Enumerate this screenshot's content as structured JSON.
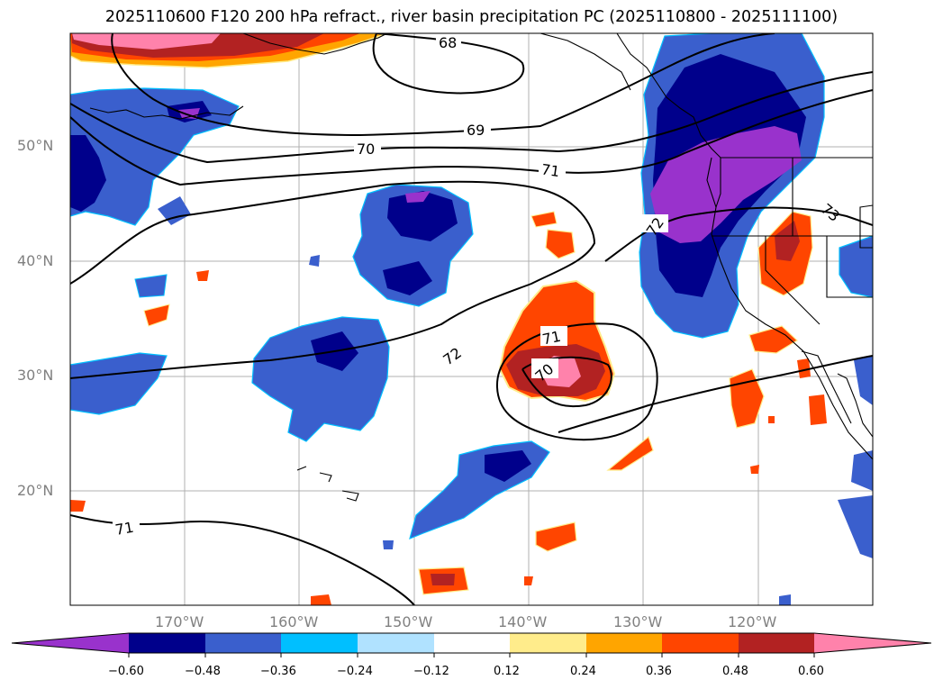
{
  "title": "2025110600 F120 200 hPa refract., river basin precipitation PC (2025110800 - 2025111100)",
  "map": {
    "lat_labels": [
      "50°N",
      "40°N",
      "30°N",
      "20°N"
    ],
    "lon_labels": [
      "170°W",
      "160°W",
      "150°W",
      "140°W",
      "130°W",
      "120°W"
    ],
    "contour_labels": [
      "68",
      "69",
      "70",
      "71",
      "72",
      "70",
      "71",
      "71",
      "73",
      "72"
    ],
    "contour_color": "#000000",
    "coastline_color": "#000000",
    "grid_color": "#b0b0b0"
  },
  "colorbar": {
    "tick_labels": [
      "−0.60",
      "−0.48",
      "−0.36",
      "−0.24",
      "−0.12",
      "0.12",
      "0.24",
      "0.36",
      "0.48",
      "0.60"
    ],
    "colors": [
      "#9932cc",
      "#00008b",
      "#3a5fcd",
      "#00bfff",
      "#b0e2ff",
      "#ffffff",
      "#ffec8b",
      "#ffa500",
      "#ff4500",
      "#b22222",
      "#ff82ab"
    ]
  }
}
